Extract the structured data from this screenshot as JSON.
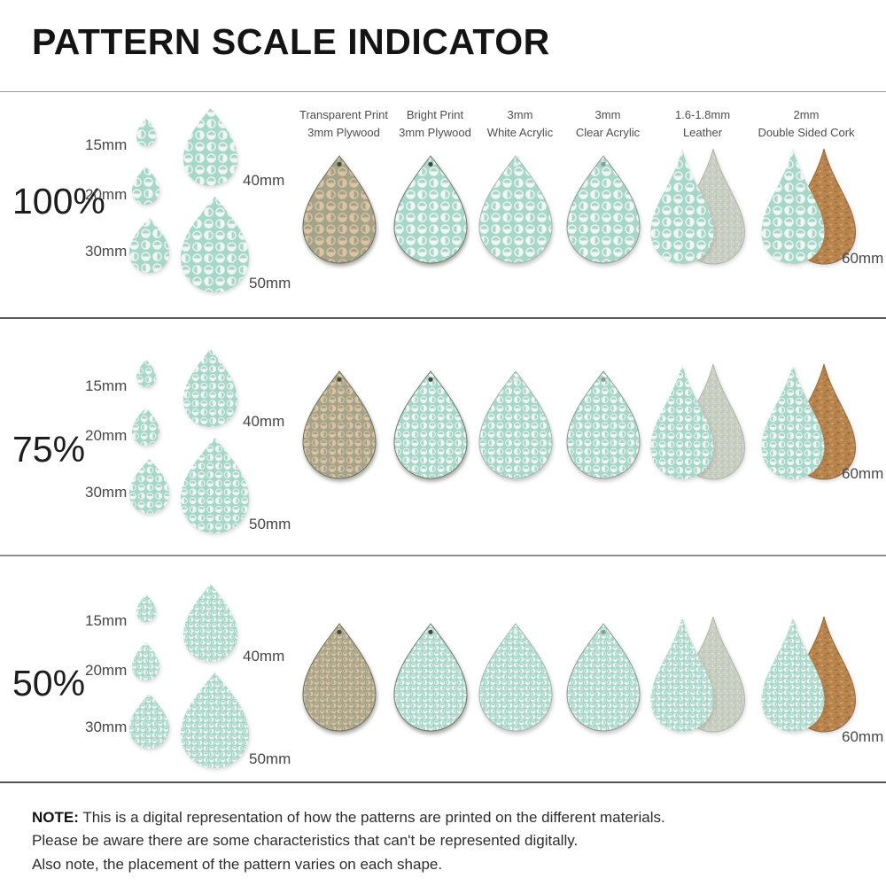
{
  "title": "PATTERN SCALE INDICATOR",
  "materials": [
    {
      "line1": "Transparent Print",
      "line2": "3mm Plywood"
    },
    {
      "line1": "Bright Print",
      "line2": "3mm Plywood"
    },
    {
      "line1": "3mm",
      "line2": "White Acrylic"
    },
    {
      "line1": "3mm",
      "line2": "Clear Acrylic"
    },
    {
      "line1": "1.6-1.8mm",
      "line2": "Leather"
    },
    {
      "line1": "2mm",
      "line2": "Double Sided Cork"
    }
  ],
  "rows": [
    {
      "scale": "100%",
      "sizes": {
        "s15": "15mm",
        "s20": "20mm",
        "s30": "30mm",
        "s40": "40mm",
        "s50": "50mm",
        "s60": "60mm"
      }
    },
    {
      "scale": "75%",
      "sizes": {
        "s15": "15mm",
        "s20": "20mm",
        "s30": "30mm",
        "s40": "40mm",
        "s50": "50mm",
        "s60": "60mm"
      }
    },
    {
      "scale": "50%",
      "sizes": {
        "s15": "15mm",
        "s20": "20mm",
        "s30": "30mm",
        "s40": "40mm",
        "s50": "50mm",
        "s60": "60mm"
      }
    }
  ],
  "note": {
    "label": "NOTE:",
    "line1": "This is a digital representation of how the patterns are printed on the different materials.",
    "line2": "Please be aware there are some characteristics that can't be represented digitally.",
    "line3": "Also note, the placement of the pattern varies on each shape."
  },
  "colors": {
    "mint": "#a7d7c9",
    "pattern_white": "#f2f6f3",
    "plywood_tan": "#a3a38a",
    "plywood_pattern": "#ddc3a3",
    "leather_suede": "#c9cec2",
    "cork_brown": "#b9854f",
    "title_black": "#141414",
    "label_gray": "#474747"
  }
}
